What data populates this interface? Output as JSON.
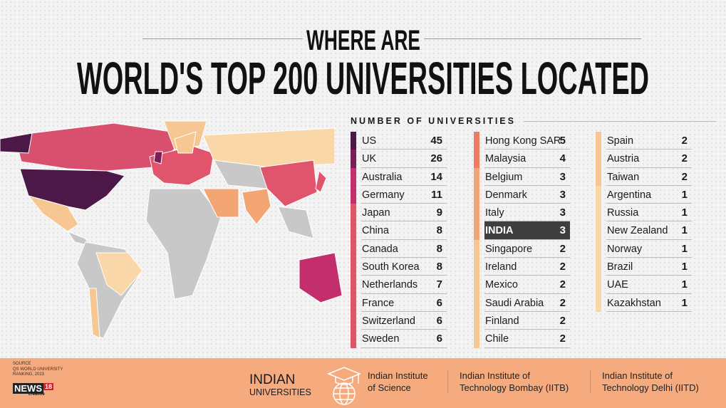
{
  "title_line1": "WHERE ARE",
  "title_line2": "WORLD'S TOP 200 UNIVERSITIES LOCATED",
  "chart_data": {
    "type": "table",
    "title": "NUMBER OF UNIVERSITIES",
    "columns": [
      "Country",
      "Universities"
    ],
    "rows": [
      {
        "country": "US",
        "count": 45,
        "color": "#4b1848"
      },
      {
        "country": "UK",
        "count": 26,
        "color": "#7b1e56"
      },
      {
        "country": "Australia",
        "count": 14,
        "color": "#c22f6c"
      },
      {
        "country": "Germany",
        "count": 11,
        "color": "#c22f6c"
      },
      {
        "country": "Japan",
        "count": 9,
        "color": "#e0546c"
      },
      {
        "country": "China",
        "count": 8,
        "color": "#e0546c"
      },
      {
        "country": "Canada",
        "count": 8,
        "color": "#e0546c"
      },
      {
        "country": "South Korea",
        "count": 8,
        "color": "#e0546c"
      },
      {
        "country": "Netherlands",
        "count": 7,
        "color": "#e0546c"
      },
      {
        "country": "France",
        "count": 6,
        "color": "#e0546c"
      },
      {
        "country": "Switzerland",
        "count": 6,
        "color": "#e0546c"
      },
      {
        "country": "Sweden",
        "count": 6,
        "color": "#e0546c"
      },
      {
        "country": "Hong Kong SAR",
        "count": 5,
        "color": "#ef7c62"
      },
      {
        "country": "Malaysia",
        "count": 4,
        "color": "#ef7c62"
      },
      {
        "country": "Belgium",
        "count": 3,
        "color": "#f4a574"
      },
      {
        "country": "Denmark",
        "count": 3,
        "color": "#f4a574"
      },
      {
        "country": "Italy",
        "count": 3,
        "color": "#f4a574"
      },
      {
        "country": "INDIA",
        "count": 3,
        "color": "#f4a574",
        "highlight": true
      },
      {
        "country": "Singapore",
        "count": 2,
        "color": "#f7c793"
      },
      {
        "country": "Ireland",
        "count": 2,
        "color": "#f7c793"
      },
      {
        "country": "Mexico",
        "count": 2,
        "color": "#f7c793"
      },
      {
        "country": "Saudi Arabia",
        "count": 2,
        "color": "#f7c793"
      },
      {
        "country": "Finland",
        "count": 2,
        "color": "#f7c793"
      },
      {
        "country": "Chile",
        "count": 2,
        "color": "#f7c793"
      },
      {
        "country": "Spain",
        "count": 2,
        "color": "#f7c793"
      },
      {
        "country": "Austria",
        "count": 2,
        "color": "#f7c793"
      },
      {
        "country": "Taiwan",
        "count": 2,
        "color": "#f7c793"
      },
      {
        "country": "Argentina",
        "count": 1,
        "color": "#f9d7a8"
      },
      {
        "country": "Russia",
        "count": 1,
        "color": "#f9d7a8"
      },
      {
        "country": "New Zealand",
        "count": 1,
        "color": "#f9d7a8"
      },
      {
        "country": "Norway",
        "count": 1,
        "color": "#f9d7a8"
      },
      {
        "country": "Brazil",
        "count": 1,
        "color": "#f9d7a8"
      },
      {
        "country": "UAE",
        "count": 1,
        "color": "#f9d7a8"
      },
      {
        "country": "Kazakhstan",
        "count": 1,
        "color": "#f9d7a8"
      }
    ]
  },
  "source": {
    "label": "SOURCE",
    "line1": "QS WORLD UNIVERSITY",
    "line2": "RANKING, 2023"
  },
  "logo": {
    "name": "NEWS",
    "num": "18",
    "tag": "creative"
  },
  "indian": {
    "line1": "INDIAN",
    "line2": "UNIVERSITIES",
    "institutes": [
      {
        "l1": "Indian Institute",
        "l2": "of Science"
      },
      {
        "l1": "Indian Institute of",
        "l2": "Technology Bombay (IITB)"
      },
      {
        "l1": "Indian Institute of",
        "l2": "Technology Delhi (IITD)"
      }
    ]
  }
}
